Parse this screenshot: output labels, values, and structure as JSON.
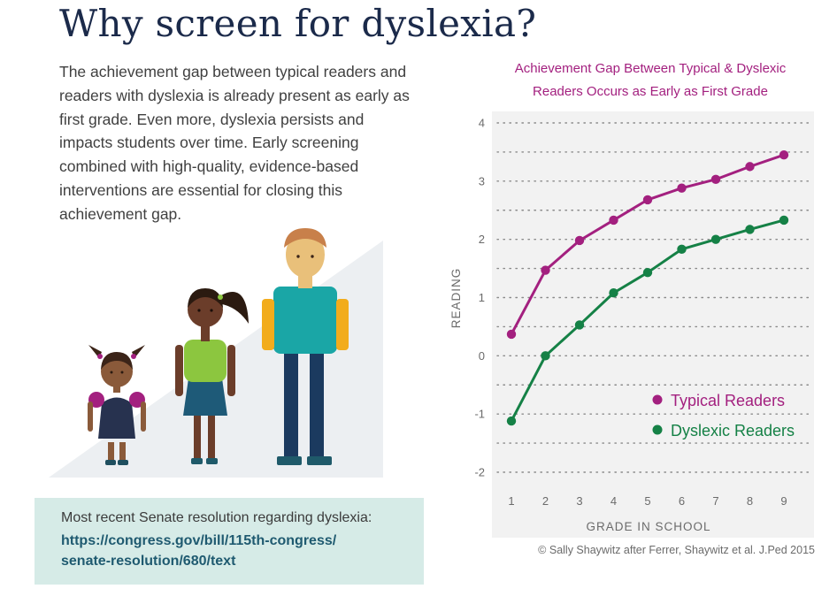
{
  "page": {
    "title": "Why screen for dyslexia?",
    "intro": "The achievement gap between typical readers and readers with dyslexia is already present as early as first grade. Even more, dyslexia persists and impacts students over time. Early screening combined with high-quality, evidence-based interventions are essential for closing this achievement gap."
  },
  "resource": {
    "intro": "Most recent Senate resolution regarding dyslexia:",
    "link_line1": "https://congress.gov/bill/115th-congress/",
    "link_line2": "senate-resolution/680/text"
  },
  "colors": {
    "title": "#1b2a4a",
    "typical": "#a3207f",
    "dyslexic": "#158146",
    "resource_box": "#d6ebe7"
  },
  "chart_data": {
    "type": "line",
    "title_line1": "Achievement Gap Between Typical & Dyslexic",
    "title_line2": "Readers Occurs as Early as First Grade",
    "xlabel": "GRADE IN SCHOOL",
    "ylabel": "READING",
    "x": [
      1,
      2,
      3,
      4,
      5,
      6,
      7,
      8,
      9
    ],
    "yticks": [
      4,
      3,
      2,
      1,
      0,
      -1,
      -2
    ],
    "ylim": [
      -2,
      4
    ],
    "xlim": [
      1,
      9
    ],
    "grid": "dotted horizontal",
    "legend_position": "lower-right",
    "series": [
      {
        "name": "Typical Readers",
        "color": "#a3207f",
        "values": [
          0.37,
          1.47,
          1.98,
          2.33,
          2.68,
          2.88,
          3.03,
          3.25,
          3.45
        ]
      },
      {
        "name": "Dyslexic Readers",
        "color": "#158146",
        "values": [
          -1.12,
          0.0,
          0.53,
          1.08,
          1.43,
          1.83,
          2.0,
          2.17,
          2.33
        ]
      }
    ],
    "credit": "© Sally Shaywitz after Ferrer, Shaywitz et al. J.Ped 2015"
  }
}
